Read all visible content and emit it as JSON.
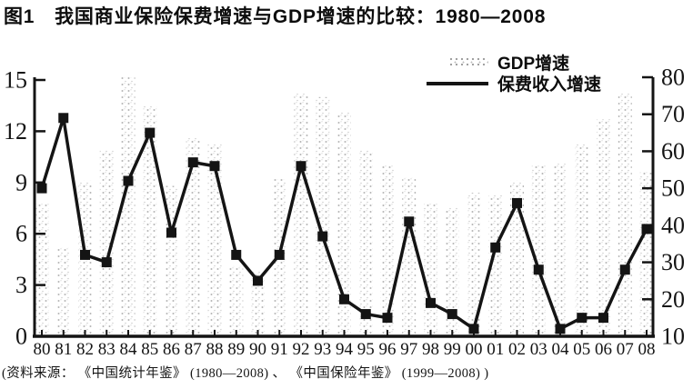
{
  "title": "图1　我国商业保险保费增速与GDP增速的比较：1980—2008",
  "source_note": "(资料来源： 《中国统计年鉴》 (1980—2008) 、 《中国保险年鉴》 (1999—2008) )",
  "legend": {
    "gdp_label": "GDP增速",
    "premium_label": "保费收入增速"
  },
  "colors": {
    "ink": "#141414",
    "bar_speckle": "#9c9c9c",
    "background": "#ffffff"
  },
  "chart_data": {
    "type": "line",
    "title": "图1 我国商业保险保费增速与GDP增速的比较：1980—2008",
    "x": [
      "80",
      "81",
      "82",
      "83",
      "84",
      "85",
      "86",
      "87",
      "88",
      "89",
      "90",
      "91",
      "92",
      "93",
      "94",
      "95",
      "96",
      "97",
      "98",
      "99",
      "00",
      "01",
      "02",
      "03",
      "04",
      "05",
      "06",
      "07",
      "08"
    ],
    "series": [
      {
        "name": "GDP增速",
        "type": "bar",
        "axis": "left",
        "unit": "%",
        "values": [
          7.8,
          5.2,
          9.1,
          10.9,
          15.2,
          13.5,
          8.8,
          11.6,
          11.3,
          4.1,
          3.8,
          9.2,
          14.2,
          14.0,
          13.1,
          10.9,
          10.0,
          9.3,
          7.8,
          7.6,
          8.4,
          8.3,
          9.1,
          10.0,
          10.1,
          11.3,
          12.7,
          14.2,
          9.6
        ]
      },
      {
        "name": "保费收入增速",
        "type": "line",
        "axis": "right",
        "unit": "%",
        "marker": "square",
        "values": [
          50,
          69,
          32,
          30,
          52,
          65,
          38,
          57,
          56,
          32,
          25,
          32,
          56,
          37,
          20,
          16,
          15,
          41,
          19,
          16,
          12,
          34,
          46,
          28,
          12,
          15,
          15,
          28,
          39
        ]
      }
    ],
    "left_axis": {
      "range": [
        0,
        15
      ],
      "ticks": [
        15,
        12,
        9,
        6,
        3,
        0
      ]
    },
    "right_axis": {
      "range": [
        10,
        80
      ],
      "ticks": [
        80,
        70,
        60,
        50,
        40,
        30,
        20,
        10
      ]
    },
    "grid": false,
    "legend_position": "top-right"
  }
}
